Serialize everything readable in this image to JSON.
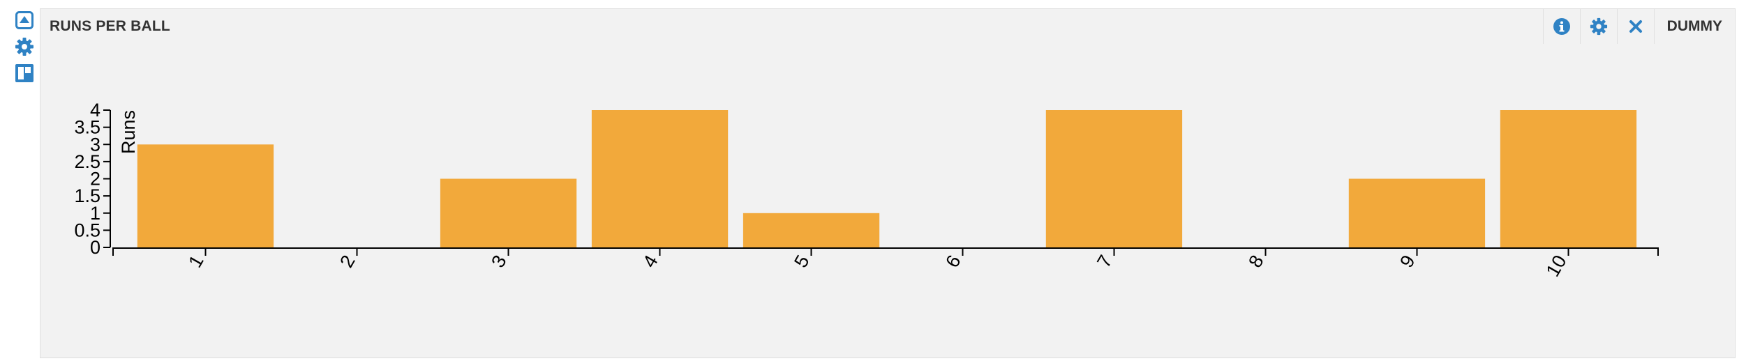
{
  "side_toolbar": {
    "icons": [
      "expand-icon",
      "gear-icon",
      "layout-icon"
    ]
  },
  "widget": {
    "title": "RUNS PER BALL",
    "controls": {
      "info_icon": "info-icon",
      "settings_icon": "gear-icon",
      "close_icon": "close-icon",
      "dataset_label": "DUMMY"
    }
  },
  "colors": {
    "bar": "#f2a93b",
    "accent": "#2f82c4",
    "axis": "#000000"
  },
  "chart_data": {
    "type": "bar",
    "title": "RUNS PER BALL",
    "xlabel": "",
    "ylabel": "Runs",
    "categories": [
      "1",
      "2",
      "3",
      "4",
      "5",
      "6",
      "7",
      "8",
      "9",
      "10"
    ],
    "values": [
      3,
      0,
      2,
      4,
      1,
      0,
      4,
      0,
      2,
      4
    ],
    "ylim": [
      0,
      4
    ],
    "yticks": [
      "0",
      "0.5",
      "1",
      "1.5",
      "2",
      "2.5",
      "3",
      "3.5",
      "4"
    ],
    "grid": false,
    "legend": "none"
  }
}
